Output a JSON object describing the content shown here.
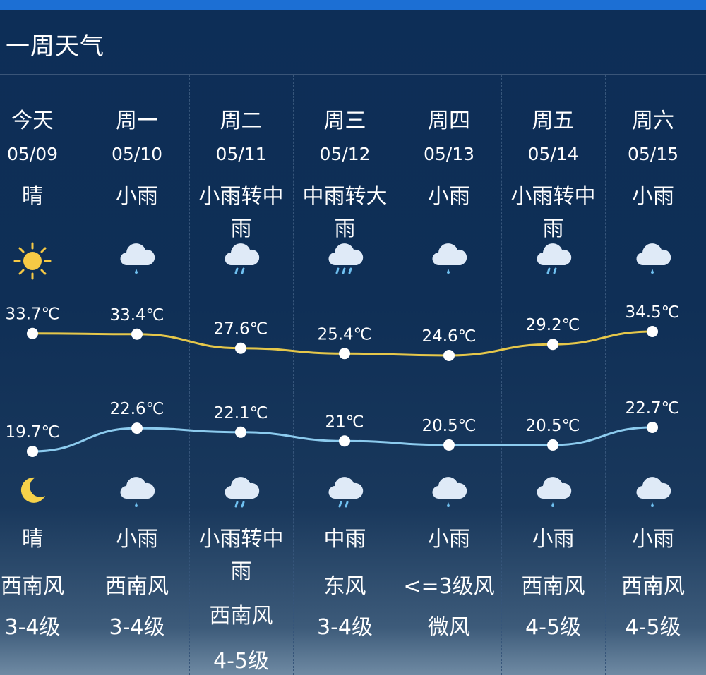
{
  "header": {
    "title": "一周天气"
  },
  "days": [
    {
      "day": "今天",
      "date": "05/09",
      "day_cond": "晴",
      "day_icon": "sun-icon",
      "night_icon": "moon-icon",
      "night_cond": "晴",
      "wind_dir": "西南风",
      "wind_level": "3-4级"
    },
    {
      "day": "周一",
      "date": "05/10",
      "day_cond": "小雨",
      "day_icon": "light-rain-icon",
      "night_icon": "light-rain-icon",
      "night_cond": "小雨",
      "wind_dir": "西南风",
      "wind_level": "3-4级"
    },
    {
      "day": "周二",
      "date": "05/11",
      "day_cond": "小雨转中雨",
      "day_icon": "moderate-rain-icon",
      "night_icon": "moderate-rain-icon",
      "night_cond": "小雨转中雨",
      "wind_dir": "西南风",
      "wind_level": "4-5级"
    },
    {
      "day": "周三",
      "date": "05/12",
      "day_cond": "中雨转大雨",
      "day_icon": "heavy-rain-icon",
      "night_icon": "moderate-rain-icon",
      "night_cond": "中雨",
      "wind_dir": "东风",
      "wind_level": "3-4级"
    },
    {
      "day": "周四",
      "date": "05/13",
      "day_cond": "小雨",
      "day_icon": "light-rain-icon",
      "night_icon": "light-rain-icon",
      "night_cond": "小雨",
      "wind_dir": "<=3级风",
      "wind_level": "微风"
    },
    {
      "day": "周五",
      "date": "05/14",
      "day_cond": "小雨转中雨",
      "day_icon": "moderate-rain-icon",
      "night_icon": "light-rain-icon",
      "night_cond": "小雨",
      "wind_dir": "西南风",
      "wind_level": "4-5级"
    },
    {
      "day": "周六",
      "date": "05/15",
      "day_cond": "小雨",
      "day_icon": "light-rain-icon",
      "night_icon": "light-rain-icon",
      "night_cond": "小雨",
      "wind_dir": "西南风",
      "wind_level": "4-5级"
    }
  ],
  "chart_data": {
    "type": "line",
    "categories": [
      "05/09",
      "05/10",
      "05/11",
      "05/12",
      "05/13",
      "05/14",
      "05/15"
    ],
    "series": [
      {
        "values": [
          33.7,
          33.4,
          27.6,
          25.4,
          24.6,
          29.2,
          34.5
        ],
        "labels": [
          "33.7℃",
          "33.4℃",
          "27.6℃",
          "25.4℃",
          "24.6℃",
          "29.2℃",
          "34.5℃"
        ],
        "color": "#e5c74a"
      },
      {
        "values": [
          19.7,
          22.6,
          22.1,
          21,
          20.5,
          20.5,
          22.7
        ],
        "labels": [
          "19.7℃",
          "22.6℃",
          "22.1℃",
          "21℃",
          "20.5℃",
          "20.5℃",
          "22.7℃"
        ],
        "color": "#8ccbee"
      }
    ],
    "grid": false
  },
  "colors": {
    "accent_bar": "#1c6fd4",
    "high_line": "#e5c74a",
    "low_line": "#8ccbee",
    "sun": "#f6c945",
    "moon": "#f6d24a",
    "cloud": "#dfeaf7",
    "rain": "#6fc0f0"
  }
}
